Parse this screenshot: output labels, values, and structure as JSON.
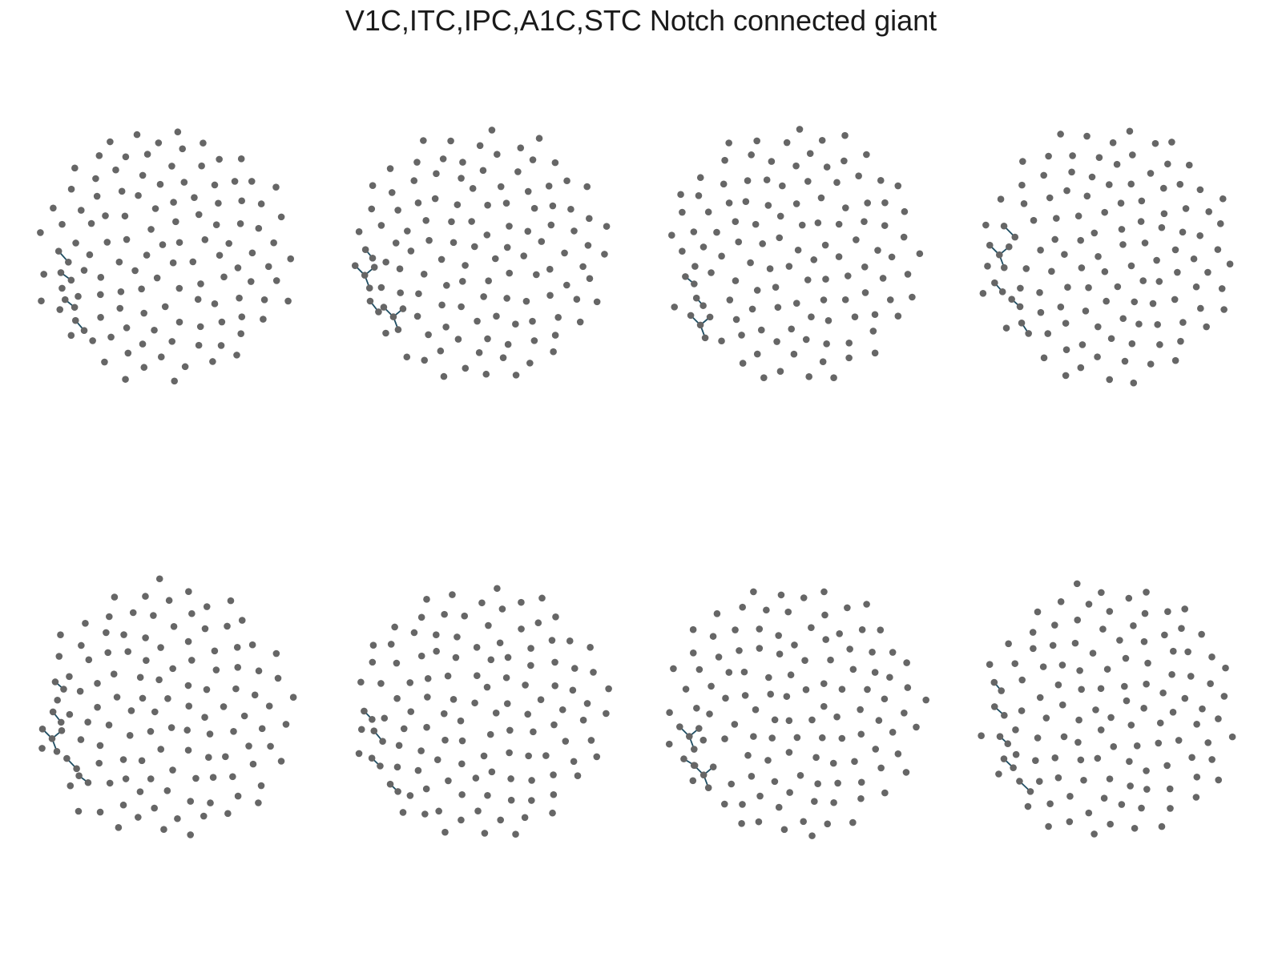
{
  "title": "V1C,ITC,IPC,A1C,STC Notch connected giant",
  "style": {
    "node_color": "#666666",
    "edge_color": "#1f4e63",
    "background": "#ffffff"
  },
  "panels": [
    {
      "id": "row1-col1",
      "seed": 11,
      "nodes": 118
    },
    {
      "id": "row1-col2",
      "seed": 23,
      "nodes": 118
    },
    {
      "id": "row1-col3",
      "seed": 37,
      "nodes": 118
    },
    {
      "id": "row1-col4",
      "seed": 41,
      "nodes": 118
    },
    {
      "id": "row2-col1",
      "seed": 53,
      "nodes": 118
    },
    {
      "id": "row2-col2",
      "seed": 67,
      "nodes": 118
    },
    {
      "id": "row2-col3",
      "seed": 71,
      "nodes": 118
    },
    {
      "id": "row2-col4",
      "seed": 89,
      "nodes": 118
    }
  ]
}
